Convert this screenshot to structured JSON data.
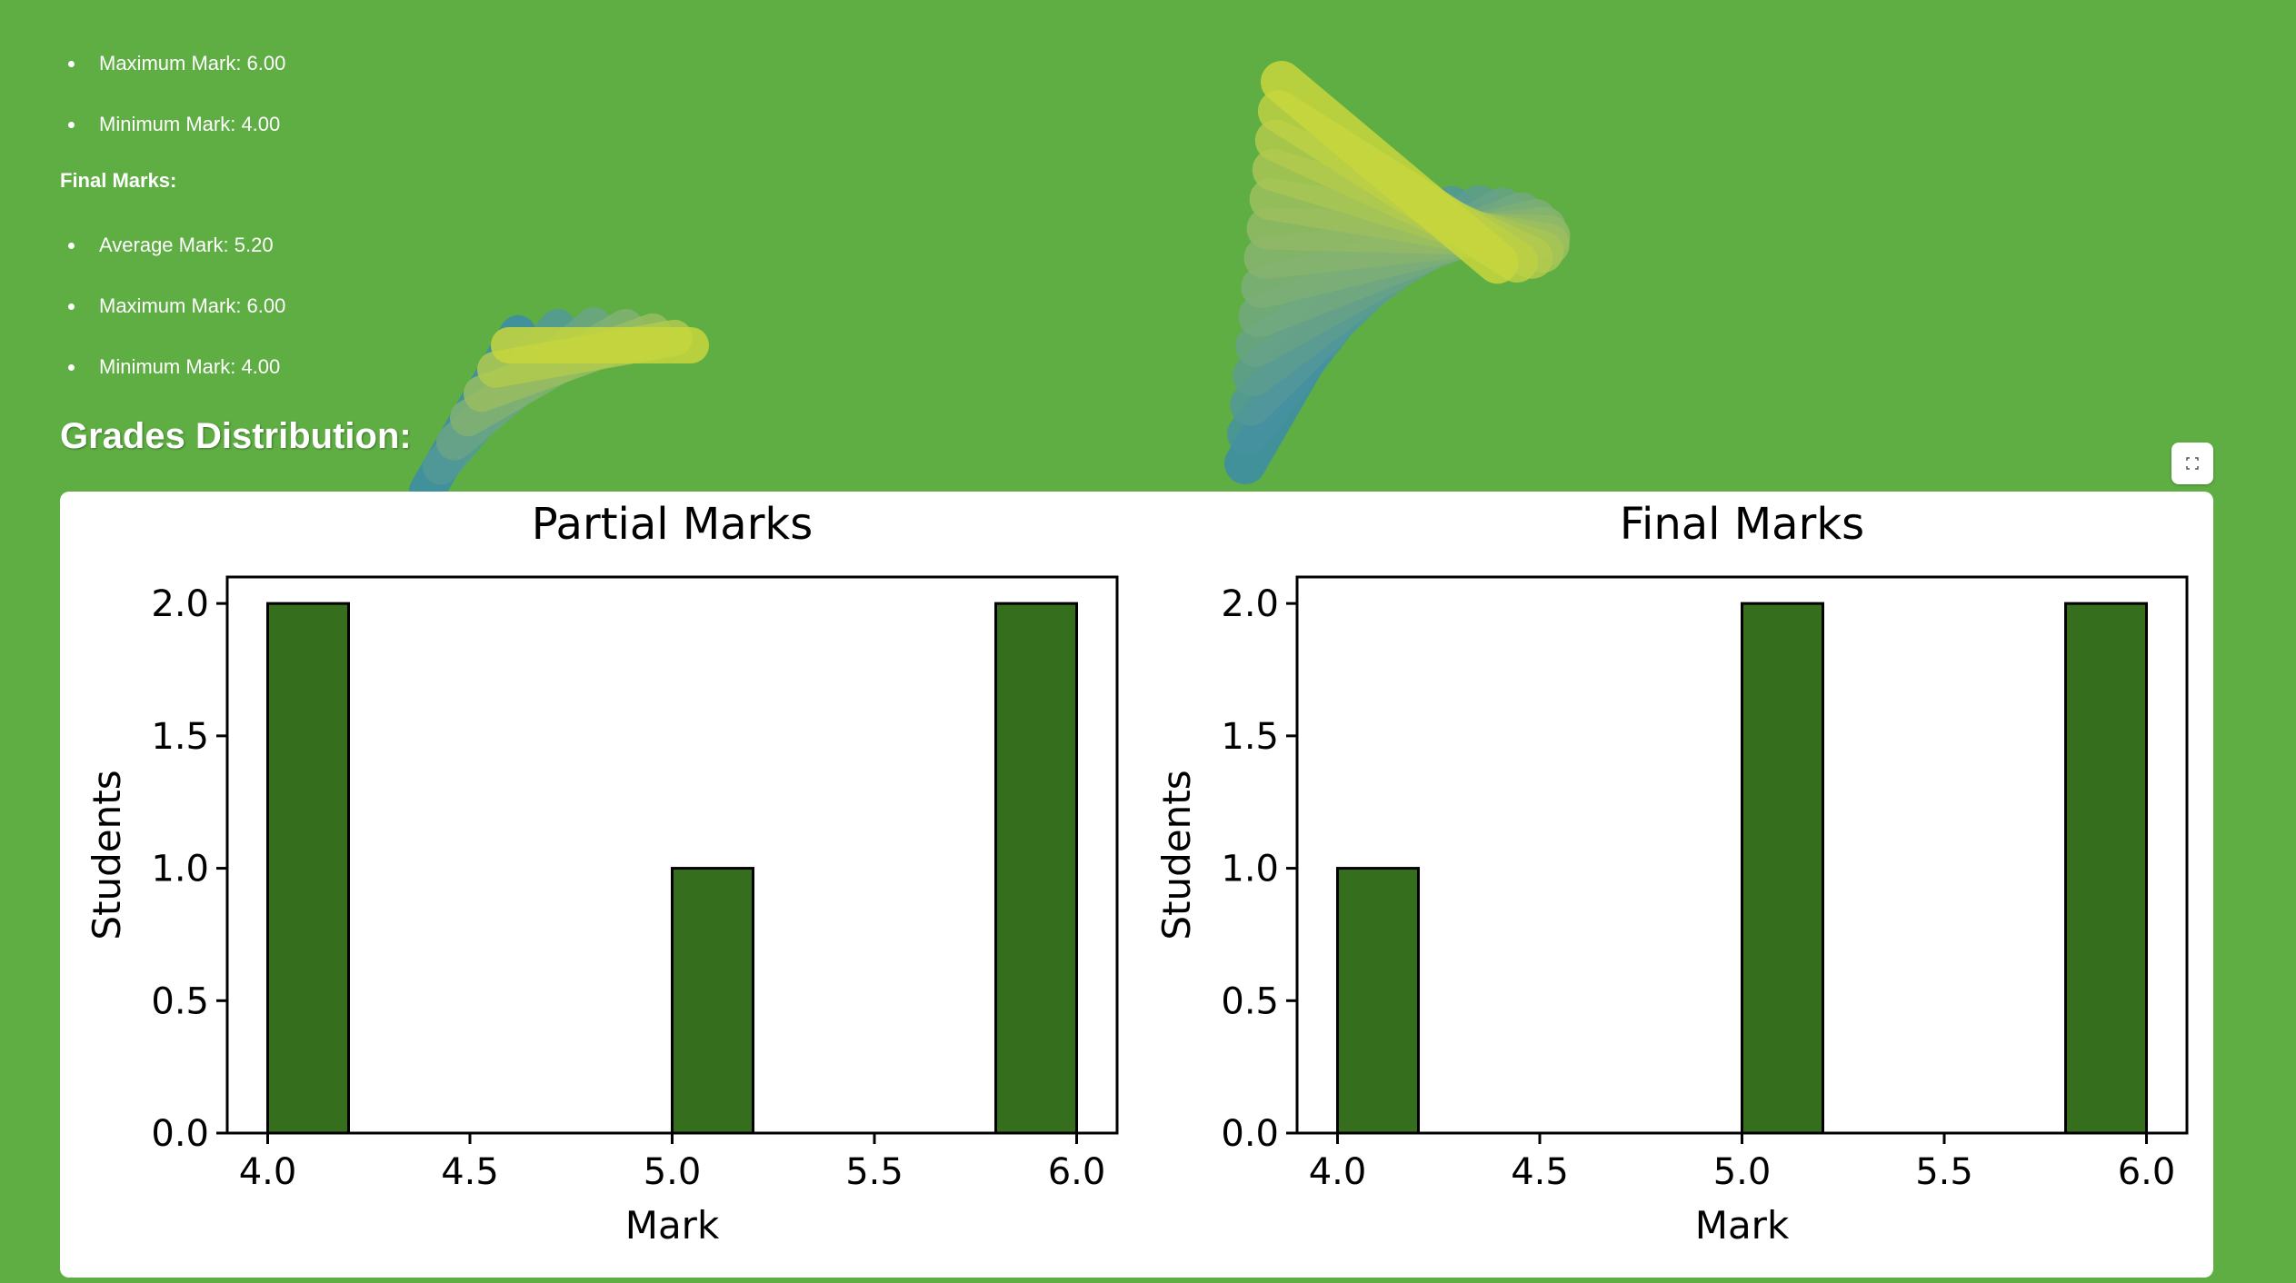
{
  "partial_stats": [
    {
      "label": "Maximum Mark: 6.00"
    },
    {
      "label": "Minimum Mark: 4.00"
    }
  ],
  "final_heading": "Final Marks:",
  "final_stats": [
    {
      "label": "Average Mark: 5.20"
    },
    {
      "label": "Maximum Mark: 6.00"
    },
    {
      "label": "Minimum Mark: 4.00"
    }
  ],
  "section_title": "Grades Distribution:",
  "fullscreen_icon": "expand-icon",
  "colors": {
    "background": "#5fae43",
    "bar_fill": "#356e1c",
    "bar_edge": "#000000"
  },
  "chart_data": [
    {
      "type": "bar",
      "title": "Partial Marks",
      "xlabel": "Mark",
      "ylabel": "Students",
      "bins": [
        {
          "x_start": 4.0,
          "x_end": 4.2,
          "value": 2
        },
        {
          "x_start": 5.0,
          "x_end": 5.2,
          "value": 1
        },
        {
          "x_start": 5.8,
          "x_end": 6.0,
          "value": 2
        }
      ],
      "xlim": [
        3.9,
        6.1
      ],
      "ylim": [
        0,
        2.1
      ],
      "xticks": [
        "4.0",
        "4.5",
        "5.0",
        "5.5",
        "6.0"
      ],
      "yticks": [
        "0.0",
        "0.5",
        "1.0",
        "1.5",
        "2.0"
      ],
      "grid": false
    },
    {
      "type": "bar",
      "title": "Final Marks",
      "xlabel": "Mark",
      "ylabel": "Students",
      "bins": [
        {
          "x_start": 4.0,
          "x_end": 4.2,
          "value": 1
        },
        {
          "x_start": 5.0,
          "x_end": 5.2,
          "value": 2
        },
        {
          "x_start": 5.8,
          "x_end": 6.0,
          "value": 2
        }
      ],
      "xlim": [
        3.9,
        6.1
      ],
      "ylim": [
        0,
        2.1
      ],
      "xticks": [
        "4.0",
        "4.5",
        "5.0",
        "5.5",
        "6.0"
      ],
      "yticks": [
        "0.0",
        "0.5",
        "1.0",
        "1.5",
        "2.0"
      ],
      "grid": false
    }
  ]
}
